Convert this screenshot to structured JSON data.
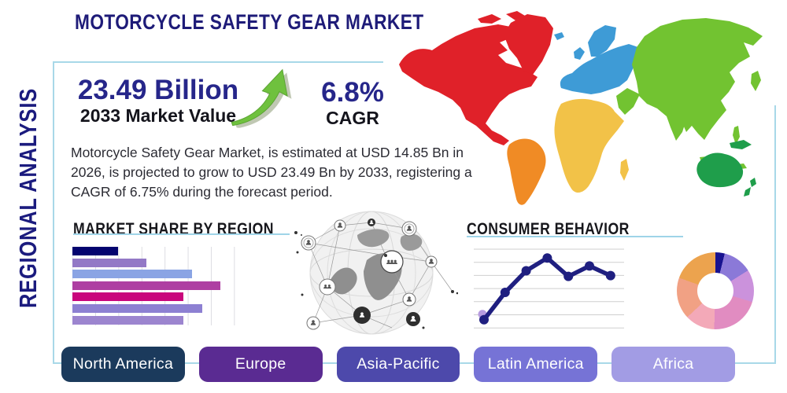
{
  "page": {
    "title": "MOTORCYCLE SAFETY GEAR MARKET",
    "sidebar_label": "REGIONAL ANALYSIS"
  },
  "stats": {
    "market_value": "23.49 Billion",
    "market_value_label": "2033 Market Value",
    "cagr_value": "6.8%",
    "cagr_label": "CAGR"
  },
  "description": "Motorcycle Safety Gear Market, is estimated at USD 14.85 Bn in 2026, is projected to grow to USD 23.49 Bn by 2033, registering a CAGR of 6.75% during the forecast period.",
  "sections": {
    "market_share": "MARKET SHARE BY REGION",
    "consumer_behavior": "CONSUMER BEHAVIOR"
  },
  "regions": [
    {
      "label": "North America",
      "color": "#1b3a5c"
    },
    {
      "label": "Europe",
      "color": "#5a2b92"
    },
    {
      "label": "Asia-Pacific",
      "color": "#4d49ab"
    },
    {
      "label": "Latin America",
      "color": "#7673d6"
    },
    {
      "label": "Africa",
      "color": "#a29ce4"
    }
  ],
  "map_colors": {
    "north_america": "#e02129",
    "south_america": "#f08b25",
    "europe": "#3e9bd6",
    "africa": "#f2c248",
    "asia": "#72c331",
    "oceania": "#1f9e4b"
  },
  "accents": {
    "frame_blue": "#a8d8e8",
    "underline_blue": "#9fd4e8",
    "title_navy": "#1e1b78",
    "arrow_green": "#6fc13e"
  },
  "chart_data": [
    {
      "type": "bar",
      "title": "MARKET SHARE BY REGION",
      "orientation": "horizontal",
      "values": [
        31,
        50,
        81,
        100,
        75,
        88,
        75
      ],
      "xlim": [
        0,
        100
      ],
      "grid": true,
      "colors": [
        "#04046f",
        "#9379c6",
        "#8aa4e4",
        "#ae3fa2",
        "#c9067c",
        "#8d80d2",
        "#9c85cf"
      ]
    },
    {
      "type": "line",
      "title": "CONSUMER BEHAVIOR",
      "x": [
        1,
        2,
        3,
        4,
        5,
        6,
        7
      ],
      "values": [
        13,
        47,
        74,
        90,
        67,
        80,
        68
      ],
      "ylim": [
        0,
        100
      ],
      "grid": true,
      "color": "#1f1f80",
      "first_point_highlight_color": "#b79ce0"
    },
    {
      "type": "pie",
      "donut": true,
      "values": [
        3.9,
        12.2,
        13.6,
        20.8,
        12.5,
        17.5,
        19.5
      ],
      "colors": [
        "#181290",
        "#8b79d8",
        "#cb92dc",
        "#e18cc1",
        "#f3a9b8",
        "#f1a184",
        "#eca34e"
      ]
    }
  ]
}
